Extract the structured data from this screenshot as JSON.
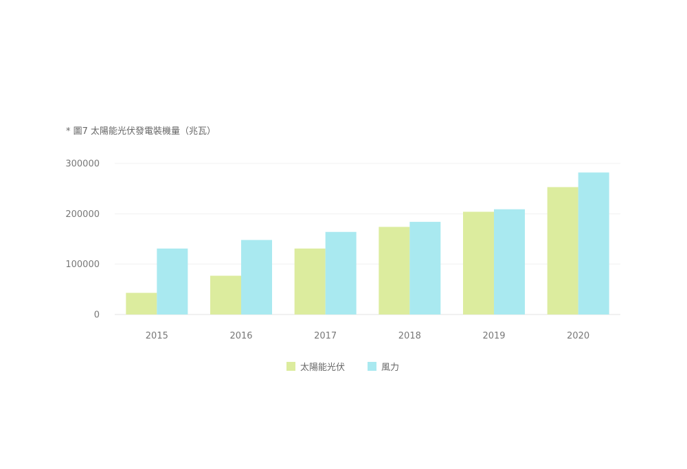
{
  "chart_data": {
    "type": "bar",
    "title": "* 圖7 太陽能光伏發電裝機量（兆瓦）",
    "categories": [
      "2015",
      "2016",
      "2017",
      "2018",
      "2019",
      "2020"
    ],
    "series": [
      {
        "name": "太陽能光伏",
        "color": "#dcec9e",
        "values": [
          43000,
          77000,
          131000,
          174000,
          204000,
          253000
        ]
      },
      {
        "name": "風力",
        "color": "#a9e9f0",
        "values": [
          131000,
          148000,
          164000,
          184000,
          209000,
          282000
        ]
      }
    ],
    "ylim": [
      0,
      300000
    ],
    "yticks": [
      "0",
      "100000",
      "200000",
      "300000"
    ],
    "grid": true,
    "legend_position": "bottom"
  }
}
